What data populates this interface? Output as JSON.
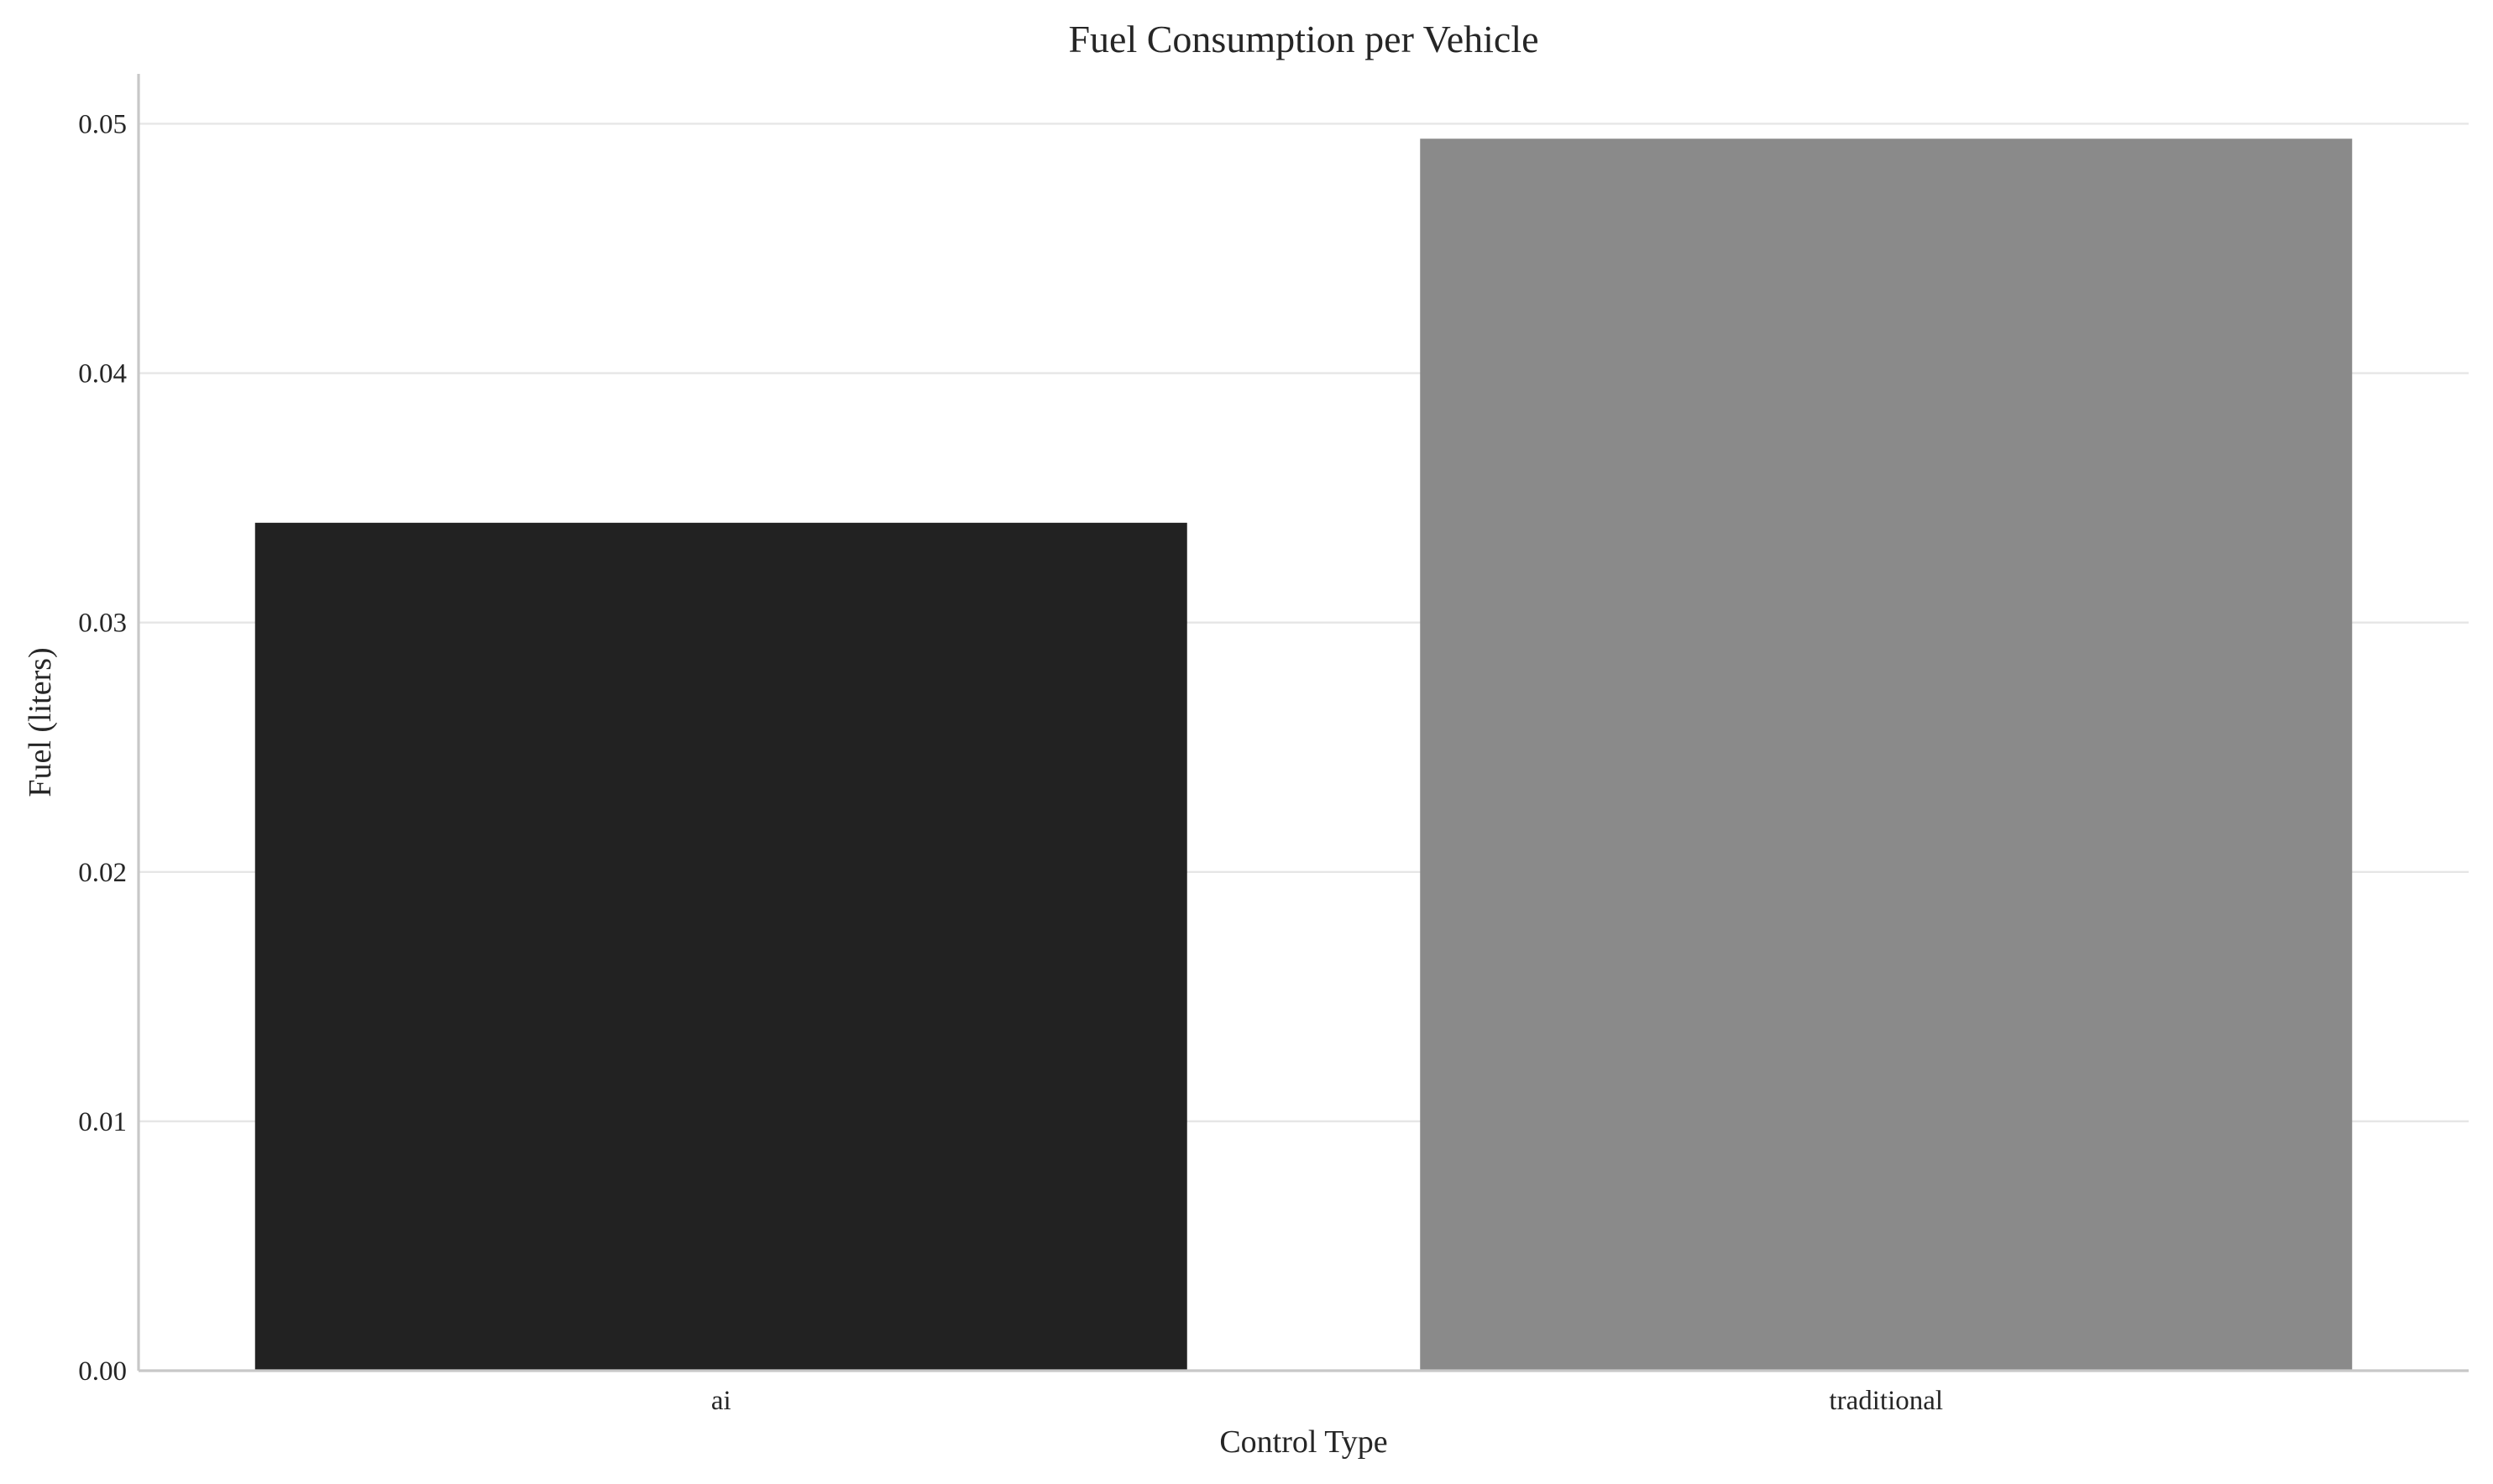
{
  "chart_data": {
    "type": "bar",
    "title": "Fuel Consumption per Vehicle",
    "xlabel": "Control Type",
    "ylabel": "Fuel (liters)",
    "categories": [
      "ai",
      "traditional"
    ],
    "values": [
      0.034,
      0.0494
    ],
    "bar_colors": [
      "#222222",
      "#8a8a8a"
    ],
    "ylim": [
      0,
      0.052
    ],
    "yticks": [
      0.0,
      0.01,
      0.02,
      0.03,
      0.04,
      0.05
    ],
    "ytick_labels": [
      "0.00",
      "0.01",
      "0.02",
      "0.03",
      "0.04",
      "0.05"
    ],
    "grid": "y",
    "legend": "none"
  }
}
